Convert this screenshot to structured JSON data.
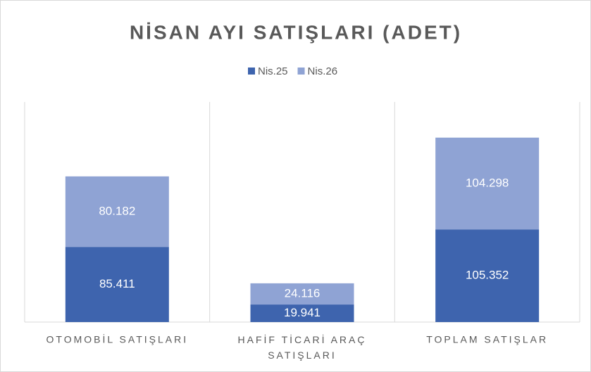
{
  "chart_data": {
    "type": "stacked_bar",
    "title": "NİSAN AYI SATIŞLARI (ADET)",
    "categories": [
      "OTOMOBİL SATIŞLARI",
      "HAFİF TİCARİ ARAÇ SATIŞLARI",
      "TOPLAM SATIŞLAR"
    ],
    "series": [
      {
        "name": "Nis.25",
        "color": "#3e64ae",
        "values": [
          85411,
          19941,
          105352
        ],
        "value_labels": [
          "85.411",
          "19.941",
          "105.352"
        ]
      },
      {
        "name": "Nis.26",
        "color": "#8fa3d4",
        "values": [
          80182,
          24116,
          104298
        ],
        "value_labels": [
          "80.182",
          "24.116",
          "104.298"
        ]
      }
    ],
    "legend": "top"
  }
}
